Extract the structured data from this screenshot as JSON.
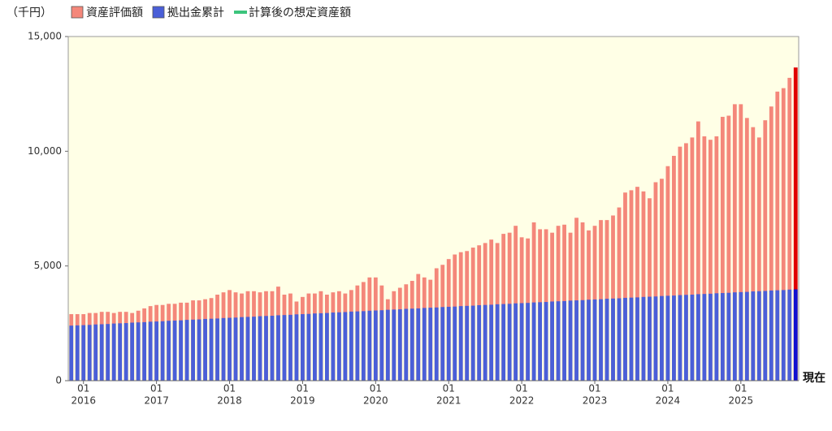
{
  "chart_data": {
    "type": "bar",
    "unit_label": "（千円）",
    "categories": [
      null,
      null,
      "01",
      null,
      null,
      null,
      null,
      null,
      null,
      null,
      null,
      null,
      null,
      null,
      "01",
      null,
      null,
      null,
      null,
      null,
      null,
      null,
      null,
      null,
      null,
      null,
      "01",
      null,
      null,
      null,
      null,
      null,
      null,
      null,
      null,
      null,
      null,
      null,
      "01",
      null,
      null,
      null,
      null,
      null,
      null,
      null,
      null,
      null,
      null,
      null,
      "01",
      null,
      null,
      null,
      null,
      null,
      null,
      null,
      null,
      null,
      null,
      null,
      "01",
      null,
      null,
      null,
      null,
      null,
      null,
      null,
      null,
      null,
      null,
      null,
      "01",
      null,
      null,
      null,
      null,
      null,
      null,
      null,
      null,
      null,
      null,
      null,
      "01",
      null,
      null,
      null,
      null,
      null,
      null,
      null,
      null,
      null,
      null,
      null,
      "01",
      null,
      null,
      null,
      null,
      null,
      null,
      null,
      null,
      null,
      null,
      null,
      "01",
      null,
      null,
      null,
      null,
      null,
      null,
      null,
      null,
      "現在"
    ],
    "category_years": [
      null,
      null,
      "2016",
      null,
      null,
      null,
      null,
      null,
      null,
      null,
      null,
      null,
      null,
      null,
      "2017",
      null,
      null,
      null,
      null,
      null,
      null,
      null,
      null,
      null,
      null,
      null,
      "2018",
      null,
      null,
      null,
      null,
      null,
      null,
      null,
      null,
      null,
      null,
      null,
      "2019",
      null,
      null,
      null,
      null,
      null,
      null,
      null,
      null,
      null,
      null,
      null,
      "2020",
      null,
      null,
      null,
      null,
      null,
      null,
      null,
      null,
      null,
      null,
      null,
      "2021",
      null,
      null,
      null,
      null,
      null,
      null,
      null,
      null,
      null,
      null,
      null,
      "2022",
      null,
      null,
      null,
      null,
      null,
      null,
      null,
      null,
      null,
      null,
      null,
      "2023",
      null,
      null,
      null,
      null,
      null,
      null,
      null,
      null,
      null,
      null,
      null,
      "2024",
      null,
      null,
      null,
      null,
      null,
      null,
      null,
      null,
      null,
      null,
      null,
      "2025",
      null,
      null,
      null,
      null,
      null,
      null,
      null,
      null,
      null
    ],
    "series": [
      {
        "name": "資産評価額",
        "color": "#f4877a",
        "last_color": "#e00000",
        "values": [
          2900,
          2900,
          2900,
          2950,
          2950,
          3000,
          3000,
          2950,
          3000,
          3000,
          2950,
          3050,
          3150,
          3250,
          3300,
          3300,
          3350,
          3350,
          3400,
          3400,
          3500,
          3500,
          3550,
          3600,
          3750,
          3850,
          3950,
          3850,
          3800,
          3900,
          3900,
          3850,
          3900,
          3900,
          4100,
          3750,
          3800,
          3450,
          3650,
          3800,
          3800,
          3900,
          3750,
          3850,
          3900,
          3800,
          3950,
          4150,
          4300,
          4500,
          4500,
          4150,
          3550,
          3900,
          4050,
          4200,
          4350,
          4650,
          4500,
          4400,
          4900,
          5050,
          5300,
          5500,
          5600,
          5650,
          5800,
          5900,
          6000,
          6150,
          6000,
          6400,
          6450,
          6750,
          6250,
          6200,
          6900,
          6600,
          6600,
          6450,
          6750,
          6800,
          6450,
          7100,
          6900,
          6550,
          6750,
          7000,
          7000,
          7200,
          7550,
          8200,
          8300,
          8450,
          8250,
          7950,
          8650,
          8800,
          9350,
          9800,
          10200,
          10350,
          10600,
          11300,
          10650,
          10500,
          10650,
          11500,
          11550,
          12050,
          12050,
          11450,
          11050,
          10600,
          11350,
          11950,
          12600,
          12750,
          13200,
          13650
        ]
      },
      {
        "name": "拠出金累計",
        "color": "#4a5fd8",
        "last_color": "#1010d0",
        "values": [
          2400,
          2410,
          2420,
          2430,
          2450,
          2460,
          2470,
          2490,
          2500,
          2510,
          2530,
          2540,
          2550,
          2570,
          2580,
          2590,
          2610,
          2620,
          2630,
          2650,
          2660,
          2670,
          2690,
          2700,
          2710,
          2730,
          2740,
          2750,
          2770,
          2780,
          2790,
          2810,
          2820,
          2830,
          2850,
          2860,
          2870,
          2890,
          2900,
          2910,
          2930,
          2940,
          2950,
          2970,
          2980,
          2990,
          3010,
          3020,
          3030,
          3050,
          3060,
          3070,
          3090,
          3100,
          3110,
          3130,
          3140,
          3150,
          3170,
          3180,
          3190,
          3210,
          3220,
          3230,
          3250,
          3260,
          3270,
          3290,
          3300,
          3310,
          3330,
          3340,
          3350,
          3370,
          3380,
          3390,
          3410,
          3420,
          3430,
          3450,
          3460,
          3470,
          3490,
          3500,
          3510,
          3530,
          3540,
          3550,
          3570,
          3580,
          3590,
          3610,
          3620,
          3630,
          3650,
          3660,
          3670,
          3690,
          3700,
          3710,
          3730,
          3740,
          3750,
          3770,
          3780,
          3790,
          3810,
          3820,
          3830,
          3850,
          3860,
          3870,
          3890,
          3900,
          3910,
          3930,
          3940,
          3950,
          3970,
          3980
        ]
      }
    ],
    "legend_line": {
      "name": "計算後の想定資産額",
      "color": "#3cc47c"
    },
    "ylim": [
      0,
      15000
    ],
    "yticks": [
      0,
      {
        "value": 5000,
        "label": "5,000"
      },
      {
        "value": 10000,
        "label": "10,000"
      },
      {
        "value": 15000,
        "label": "15,000"
      }
    ],
    "background": "#ffffe6",
    "grid": false
  }
}
